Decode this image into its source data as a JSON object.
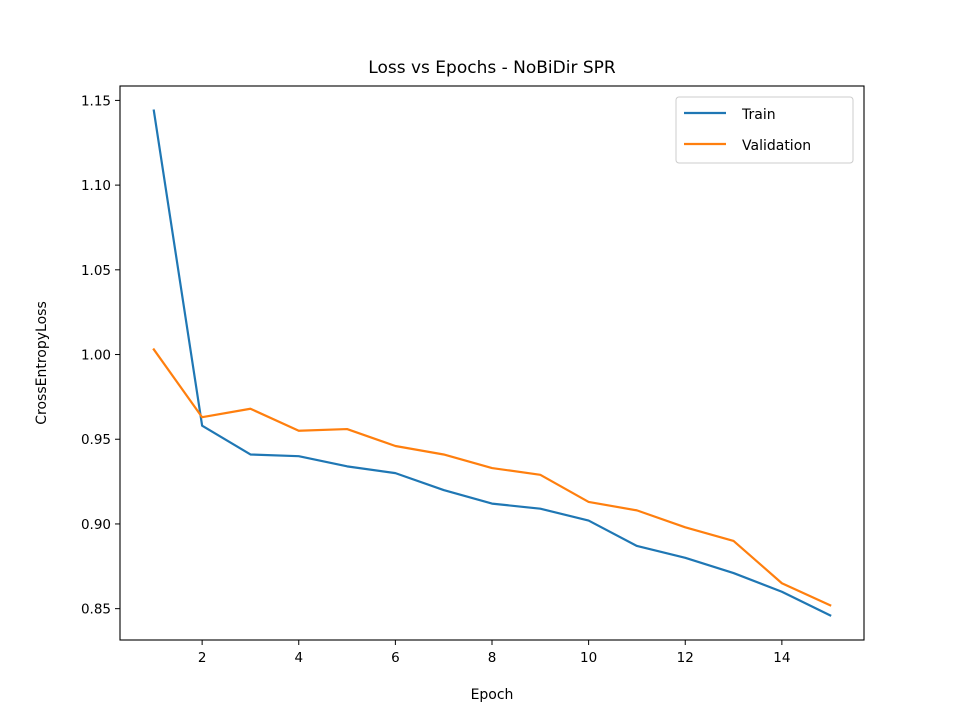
{
  "chart_data": {
    "type": "line",
    "title": "Loss vs Epochs - NoBiDir SPR",
    "xlabel": "Epoch",
    "ylabel": "CrossEntropyLoss",
    "xlim": [
      0.3,
      15.7
    ],
    "ylim": [
      0.8315,
      1.1585
    ],
    "xticks": [
      2,
      4,
      6,
      8,
      10,
      12,
      14
    ],
    "xtick_labels": [
      "2",
      "4",
      "6",
      "8",
      "10",
      "12",
      "14"
    ],
    "yticks": [
      0.85,
      0.9,
      0.95,
      1.0,
      1.05,
      1.1,
      1.15
    ],
    "ytick_labels": [
      "0.85",
      "0.90",
      "0.95",
      "1.00",
      "1.05",
      "1.10",
      "1.15"
    ],
    "grid": false,
    "legend_position": "top-right",
    "x": [
      1,
      2,
      3,
      4,
      5,
      6,
      7,
      8,
      9,
      10,
      11,
      12,
      13,
      14,
      15
    ],
    "series": [
      {
        "name": "Train",
        "color": "#1f77b4",
        "values": [
          1.144,
          0.958,
          0.941,
          0.94,
          0.934,
          0.93,
          0.92,
          0.912,
          0.909,
          0.902,
          0.887,
          0.88,
          0.871,
          0.86,
          0.846
        ]
      },
      {
        "name": "Validation",
        "color": "#ff7f0e",
        "values": [
          1.003,
          0.963,
          0.968,
          0.955,
          0.956,
          0.946,
          0.941,
          0.933,
          0.929,
          0.913,
          0.908,
          0.898,
          0.89,
          0.865,
          0.852
        ]
      }
    ]
  }
}
